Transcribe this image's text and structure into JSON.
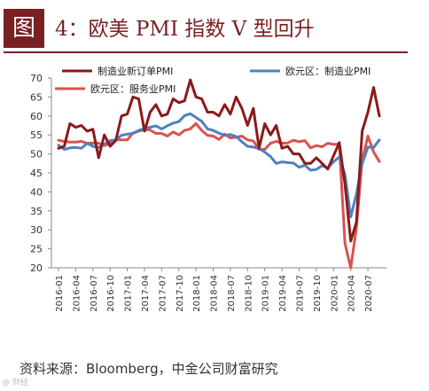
{
  "header": {
    "badge": "图",
    "title": "4：欧美 PMI 指数 V 型回升"
  },
  "source": "资料来源：Bloomberg，中金公司财富研究",
  "watermark": "@ 财经",
  "colors": {
    "brand": "#7a1f22",
    "series1": "#8b1a1a",
    "series2": "#4f81bd",
    "series3": "#d9534f"
  },
  "chart_data": {
    "type": "line",
    "ylim": [
      20,
      70
    ],
    "yticks": [
      20,
      25,
      30,
      35,
      40,
      45,
      50,
      55,
      60,
      65,
      70
    ],
    "xticklabels": [
      "2016-01",
      "2016-04",
      "2016-07",
      "2016-10",
      "2017-01",
      "2017-04",
      "2017-07",
      "2017-10",
      "2018-01",
      "2018-04",
      "2018-07",
      "2018-10",
      "2019-01",
      "2019-04",
      "2019-07",
      "2019-10",
      "2020-01",
      "2020-04",
      "2020-07"
    ],
    "x": [
      "2016-01",
      "2016-02",
      "2016-03",
      "2016-04",
      "2016-05",
      "2016-06",
      "2016-07",
      "2016-08",
      "2016-09",
      "2016-10",
      "2016-11",
      "2016-12",
      "2017-01",
      "2017-02",
      "2017-03",
      "2017-04",
      "2017-05",
      "2017-06",
      "2017-07",
      "2017-08",
      "2017-09",
      "2017-10",
      "2017-11",
      "2017-12",
      "2018-01",
      "2018-02",
      "2018-03",
      "2018-04",
      "2018-05",
      "2018-06",
      "2018-07",
      "2018-08",
      "2018-09",
      "2018-10",
      "2018-11",
      "2018-12",
      "2019-01",
      "2019-02",
      "2019-03",
      "2019-04",
      "2019-05",
      "2019-06",
      "2019-07",
      "2019-08",
      "2019-09",
      "2019-10",
      "2019-11",
      "2019-12",
      "2020-01",
      "2020-02",
      "2020-03",
      "2020-04",
      "2020-05",
      "2020-06",
      "2020-07",
      "2020-08",
      "2020-09"
    ],
    "legend": "top",
    "series": [
      {
        "name": "制造业新订单PMI",
        "color": "#8b1a1a",
        "values": [
          51.5,
          52.0,
          58.0,
          57.0,
          57.5,
          56.0,
          56.5,
          49.0,
          55.0,
          52.0,
          53.5,
          60.0,
          60.5,
          65.0,
          64.5,
          56.0,
          61.0,
          63.0,
          60.0,
          60.5,
          64.5,
          63.5,
          64.0,
          69.5,
          65.0,
          64.5,
          61.0,
          61.0,
          60.0,
          63.0,
          60.5,
          65.0,
          62.0,
          57.5,
          62.0,
          51.5,
          58.0,
          55.0,
          57.5,
          51.5,
          52.0,
          50.0,
          50.0,
          47.5,
          47.5,
          49.0,
          47.5,
          46.0,
          49.5,
          53.0,
          42.0,
          27.0,
          32.0,
          56.0,
          61.0,
          67.5,
          60.0
        ]
      },
      {
        "name": "欧元区：制造业PMI",
        "color": "#4f81bd",
        "values": [
          52.3,
          51.2,
          51.6,
          51.7,
          51.5,
          52.8,
          52.0,
          51.7,
          52.6,
          53.5,
          53.7,
          54.9,
          55.2,
          55.4,
          56.2,
          56.7,
          57.0,
          57.4,
          56.6,
          57.4,
          58.1,
          58.5,
          60.1,
          60.6,
          59.6,
          58.6,
          56.6,
          56.2,
          55.5,
          54.9,
          55.1,
          54.6,
          53.2,
          52.0,
          51.8,
          51.4,
          50.5,
          49.3,
          47.5,
          47.9,
          47.7,
          47.6,
          46.5,
          47.0,
          45.7,
          45.9,
          46.9,
          46.3,
          47.9,
          49.2,
          44.5,
          33.4,
          39.4,
          47.4,
          51.8,
          51.7,
          53.7
        ]
      },
      {
        "name": "欧元区：服务业PMI",
        "color": "#d9534f",
        "values": [
          53.6,
          53.3,
          53.1,
          53.1,
          53.3,
          52.8,
          52.9,
          52.8,
          52.2,
          52.8,
          53.8,
          53.7,
          53.7,
          55.5,
          56.0,
          56.4,
          56.3,
          55.4,
          55.4,
          54.7,
          55.8,
          55.0,
          56.2,
          56.6,
          58.0,
          56.2,
          54.9,
          54.7,
          53.8,
          55.2,
          54.2,
          54.4,
          54.7,
          53.7,
          53.4,
          51.2,
          51.2,
          52.8,
          53.3,
          52.8,
          52.9,
          53.6,
          53.2,
          53.5,
          51.6,
          52.2,
          51.9,
          52.8,
          52.5,
          52.6,
          26.4,
          12.0,
          30.5,
          48.3,
          54.7,
          50.5,
          48.0
        ]
      }
    ]
  }
}
